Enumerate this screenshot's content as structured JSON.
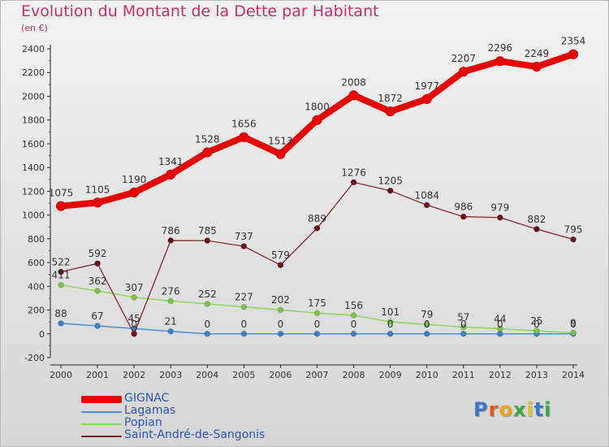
{
  "chart_data": {
    "type": "line",
    "title": "Evolution du Montant de la Dette par Habitant",
    "subtitle": "(en €)",
    "x": [
      "2000",
      "2001",
      "2002",
      "2003",
      "2004",
      "2005",
      "2006",
      "2007",
      "2008",
      "2009",
      "2010",
      "2011",
      "2012",
      "2013",
      "2014"
    ],
    "ylim": [
      -200,
      2400
    ],
    "yticks": [
      -200,
      0,
      200,
      400,
      600,
      800,
      1000,
      1200,
      1400,
      1600,
      1800,
      2000,
      2200,
      2400
    ],
    "grid": false,
    "legend_position": "bottom-left",
    "series": [
      {
        "name": "GIGNAC",
        "color": "#e60000",
        "values": [
          1075,
          1105,
          1190,
          1341,
          1528,
          1656,
          1513,
          1800,
          2008,
          1872,
          1977,
          2207,
          2296,
          2249,
          2354
        ],
        "labels": [
          "1075",
          "1105",
          "1190",
          "1341",
          "1528",
          "1656",
          "1513",
          "1800",
          "2008",
          "1872",
          "1977",
          "2207",
          "2296",
          "2249",
          "2354"
        ]
      },
      {
        "name": "Lagamas",
        "color": "#4a90d0",
        "values": [
          88,
          67,
          45,
          21,
          0,
          0,
          0,
          0,
          0,
          0,
          0,
          0,
          0,
          0,
          0
        ],
        "labels": [
          "88",
          "67",
          "45",
          "21",
          "0",
          "0",
          "0",
          "0",
          "0",
          "0",
          "0",
          "0",
          "0",
          "0",
          "0"
        ]
      },
      {
        "name": "Popian",
        "color": "#8ed65a",
        "values": [
          411,
          362,
          307,
          276,
          252,
          227,
          202,
          175,
          156,
          101,
          79,
          57,
          44,
          25,
          9
        ],
        "labels": [
          "411",
          "362",
          "307",
          "276",
          "252",
          "227",
          "202",
          "175",
          "156",
          "101",
          "79",
          "57",
          "44",
          "25",
          "9"
        ]
      },
      {
        "name": "Saint-André-de-Sangonis",
        "color": "#7a1c22",
        "values": [
          522,
          592,
          0,
          786,
          785,
          737,
          579,
          889,
          1276,
          1205,
          1084,
          986,
          979,
          882,
          795
        ],
        "labels": [
          "522",
          "592",
          "0",
          "786",
          "785",
          "737",
          "579",
          "889",
          "1276",
          "1205",
          "1084",
          "986",
          "979",
          "882",
          "795"
        ]
      }
    ]
  },
  "branding": {
    "logo_letters": [
      "P",
      "r",
      "o",
      "x",
      "i",
      "t",
      "i"
    ],
    "logo_colors": [
      "#3d78c8",
      "#e85a1c",
      "#f2a30f",
      "#39a845",
      "#e2c22a",
      "#3d78c8",
      "#39a845"
    ]
  }
}
